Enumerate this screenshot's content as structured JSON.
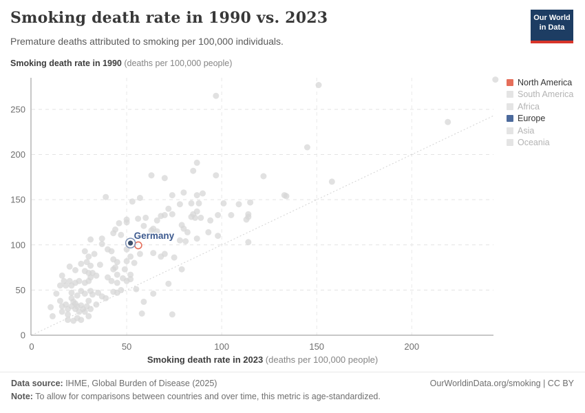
{
  "header": {
    "title": "Smoking death rate in 1990 vs. 2023",
    "subtitle": "Premature deaths attributed to smoking per 100,000 individuals.",
    "logo_line1": "Our World",
    "logo_line2": "in Data",
    "logo_bg": "#1d3d63",
    "logo_accent": "#d8352a"
  },
  "footer": {
    "source_label": "Data source:",
    "source_value": " IHME, Global Burden of Disease (2025)",
    "link": "OurWorldinData.org/smoking | CC BY",
    "note_label": "Note:",
    "note_value": " To allow for comparisons between countries and over time, this metric is age-standardized."
  },
  "chart_data": {
    "type": "scatter",
    "title": "Smoking death rate in 1990 vs. 2023",
    "xlabel": "Smoking death rate in 2023",
    "xlabel_unit": " (deaths per 100,000 people)",
    "ylabel": "Smoking death rate in 1990",
    "ylabel_unit": " (deaths per 100,000 people)",
    "xlim": [
      0,
      243
    ],
    "ylim": [
      0,
      285
    ],
    "x_ticks": [
      0,
      50,
      100,
      150,
      200
    ],
    "y_ticks": [
      0,
      50,
      100,
      150,
      200,
      250
    ],
    "grid": true,
    "parity_line": true,
    "point_color": "#d6d6d6",
    "legend_position": "right",
    "legend": [
      {
        "label": "North America",
        "color": "#e56e5a",
        "active": true
      },
      {
        "label": "South America",
        "color": "#e4e4e4",
        "active": false
      },
      {
        "label": "Africa",
        "color": "#e4e4e4",
        "active": false
      },
      {
        "label": "Europe",
        "color": "#4c6a9c",
        "active": true
      },
      {
        "label": "Asia",
        "color": "#e4e4e4",
        "active": false
      },
      {
        "label": "Oceania",
        "color": "#e4e4e4",
        "active": false
      }
    ],
    "highlights": [
      {
        "label": "",
        "x": 55,
        "y": 101,
        "color": "#e56e5a",
        "style": "ring"
      },
      {
        "label": "Germany",
        "x": 52,
        "y": 102,
        "color": "#3d5a8f",
        "style": "ring-dot",
        "label_color": "#3d5a8f"
      }
    ],
    "points": [
      [
        97,
        265
      ],
      [
        151,
        277
      ],
      [
        244,
        283
      ],
      [
        219,
        236
      ],
      [
        145,
        208
      ],
      [
        87,
        191
      ],
      [
        85,
        182
      ],
      [
        97,
        177
      ],
      [
        122,
        176
      ],
      [
        158,
        170
      ],
      [
        63,
        177
      ],
      [
        70,
        174
      ],
      [
        39,
        153
      ],
      [
        53,
        148
      ],
      [
        57,
        152
      ],
      [
        74,
        155
      ],
      [
        78,
        145
      ],
      [
        80,
        158
      ],
      [
        84,
        146
      ],
      [
        88,
        146
      ],
      [
        101,
        146
      ],
      [
        109,
        145
      ],
      [
        115,
        147
      ],
      [
        133,
        155
      ],
      [
        134,
        154
      ],
      [
        87,
        155
      ],
      [
        90,
        157
      ],
      [
        72,
        140
      ],
      [
        74,
        134
      ],
      [
        68,
        132
      ],
      [
        70,
        133
      ],
      [
        84,
        131
      ],
      [
        86,
        130
      ],
      [
        85,
        134
      ],
      [
        89,
        130
      ],
      [
        87,
        137
      ],
      [
        94,
        127
      ],
      [
        98,
        133
      ],
      [
        105,
        133
      ],
      [
        114,
        134
      ],
      [
        114,
        131
      ],
      [
        113,
        128
      ],
      [
        50,
        128
      ],
      [
        50,
        125
      ],
      [
        56,
        129
      ],
      [
        60,
        130
      ],
      [
        46,
        124
      ],
      [
        59,
        121
      ],
      [
        66,
        127
      ],
      [
        64,
        118
      ],
      [
        79,
        122
      ],
      [
        80,
        118
      ],
      [
        43,
        113
      ],
      [
        47,
        111
      ],
      [
        44,
        117
      ],
      [
        63,
        116
      ],
      [
        66,
        115
      ],
      [
        82,
        114
      ],
      [
        93,
        114
      ],
      [
        98,
        110
      ],
      [
        87,
        107
      ],
      [
        114,
        103
      ],
      [
        31,
        106
      ],
      [
        37,
        107
      ],
      [
        37,
        101
      ],
      [
        78,
        105
      ],
      [
        81,
        104
      ],
      [
        40,
        95
      ],
      [
        28,
        93
      ],
      [
        33,
        90
      ],
      [
        42,
        93
      ],
      [
        50,
        95
      ],
      [
        57,
        90
      ],
      [
        64,
        91
      ],
      [
        70,
        90
      ],
      [
        75,
        86
      ],
      [
        68,
        87
      ],
      [
        30,
        87
      ],
      [
        43,
        84
      ],
      [
        45,
        81
      ],
      [
        26,
        79
      ],
      [
        29,
        81
      ],
      [
        31,
        77
      ],
      [
        36,
        78
      ],
      [
        50,
        82
      ],
      [
        52,
        87
      ],
      [
        54,
        80
      ],
      [
        20,
        76
      ],
      [
        23,
        72
      ],
      [
        28,
        71
      ],
      [
        43,
        73
      ],
      [
        44,
        75
      ],
      [
        49,
        73
      ],
      [
        79,
        73
      ],
      [
        30,
        69
      ],
      [
        32,
        69
      ],
      [
        34,
        66
      ],
      [
        16,
        66
      ],
      [
        31,
        64
      ],
      [
        40,
        64
      ],
      [
        45,
        67
      ],
      [
        52,
        67
      ],
      [
        48,
        63
      ],
      [
        52,
        62
      ],
      [
        17,
        60
      ],
      [
        20,
        60
      ],
      [
        23,
        58
      ],
      [
        25,
        60
      ],
      [
        28,
        58
      ],
      [
        30,
        60
      ],
      [
        21,
        55
      ],
      [
        15,
        55
      ],
      [
        18,
        55
      ],
      [
        45,
        58
      ],
      [
        42,
        60
      ],
      [
        50,
        60
      ],
      [
        72,
        57
      ],
      [
        55,
        51
      ],
      [
        13,
        46
      ],
      [
        21,
        47
      ],
      [
        24,
        44
      ],
      [
        26,
        49
      ],
      [
        28,
        46
      ],
      [
        31,
        49
      ],
      [
        32,
        45
      ],
      [
        35,
        47
      ],
      [
        37,
        43
      ],
      [
        39,
        41
      ],
      [
        43,
        48
      ],
      [
        45,
        47
      ],
      [
        64,
        46
      ],
      [
        47,
        50
      ],
      [
        10,
        31
      ],
      [
        15,
        38
      ],
      [
        16,
        32
      ],
      [
        18,
        34
      ],
      [
        19,
        29
      ],
      [
        21,
        41
      ],
      [
        22,
        37
      ],
      [
        21,
        32
      ],
      [
        23,
        35
      ],
      [
        23,
        29
      ],
      [
        24,
        32
      ],
      [
        26,
        33
      ],
      [
        27,
        29
      ],
      [
        29,
        32
      ],
      [
        31,
        29
      ],
      [
        30,
        38
      ],
      [
        34,
        34
      ],
      [
        59,
        37
      ],
      [
        28,
        26
      ],
      [
        25,
        26
      ],
      [
        11,
        21
      ],
      [
        16,
        26
      ],
      [
        19,
        23
      ],
      [
        19,
        17
      ],
      [
        22,
        16
      ],
      [
        24,
        19
      ],
      [
        26,
        17
      ],
      [
        30,
        21
      ],
      [
        58,
        24
      ],
      [
        74,
        23
      ]
    ]
  }
}
